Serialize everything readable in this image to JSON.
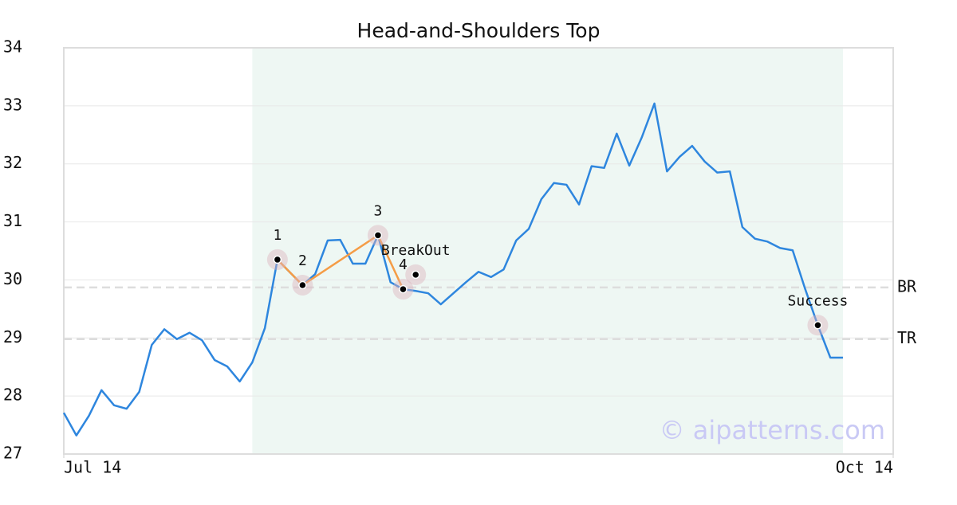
{
  "chart_data": {
    "type": "line",
    "title": "Head-and-Shoulders Top",
    "x": [
      0,
      1,
      2,
      3,
      4,
      5,
      6,
      7,
      8,
      9,
      10,
      11,
      12,
      13,
      14,
      15,
      16,
      17,
      18,
      19,
      20,
      21,
      22,
      23,
      24,
      25,
      26,
      27,
      28,
      29,
      30,
      31,
      32,
      33,
      34,
      35,
      36,
      37,
      38,
      39,
      40,
      41,
      42,
      43,
      44,
      45,
      46,
      47,
      48,
      49,
      50,
      51,
      52,
      53,
      54,
      55,
      56,
      57,
      58,
      59,
      60,
      61,
      62
    ],
    "series": [
      {
        "color": "#2e86de",
        "values": [
          27.71,
          27.32,
          27.66,
          28.1,
          27.84,
          27.78,
          28.07,
          28.88,
          29.15,
          28.98,
          29.09,
          28.96,
          28.62,
          28.51,
          28.25,
          28.58,
          29.17,
          30.35,
          30.13,
          29.91,
          30.1,
          30.68,
          30.69,
          30.28,
          30.28,
          30.77,
          29.96,
          29.84,
          29.81,
          29.77,
          29.58,
          29.77,
          29.96,
          30.14,
          30.05,
          30.18,
          30.68,
          30.88,
          31.39,
          31.67,
          31.64,
          31.3,
          31.96,
          31.93,
          32.52,
          31.97,
          32.46,
          33.04,
          31.87,
          32.12,
          32.31,
          32.04,
          31.85,
          31.87,
          30.91,
          30.71,
          30.66,
          30.55,
          30.51,
          29.84,
          29.22,
          28.66,
          28.66
        ]
      }
    ],
    "xlim": [
      0,
      66
    ],
    "xticks": [
      {
        "value": 0,
        "label": "Jul 14"
      },
      {
        "value": 66,
        "label": "Oct 14"
      }
    ],
    "ylim": [
      27,
      34
    ],
    "yticks": [
      27,
      28,
      29,
      30,
      31,
      32,
      33,
      34
    ],
    "grid": true,
    "shade": {
      "x": [
        15,
        62
      ],
      "color": "#eef7f3"
    },
    "hlines": [
      {
        "label": "BR",
        "value": 29.87
      },
      {
        "label": "TR",
        "value": 28.98
      }
    ],
    "pattern": {
      "color": "#f59c46",
      "points": [
        {
          "label": "1",
          "x": 17,
          "y": 30.35
        },
        {
          "label": "2",
          "x": 19,
          "y": 29.91
        },
        {
          "label": "3",
          "x": 25,
          "y": 30.77
        },
        {
          "label": "4",
          "x": 27,
          "y": 29.84
        }
      ]
    },
    "markers": [
      {
        "label": "BreakOut",
        "x": 28,
        "y": 30.09
      },
      {
        "label": "Success",
        "x": 60,
        "y": 29.22
      }
    ],
    "watermark": "© aipatterns.com"
  }
}
